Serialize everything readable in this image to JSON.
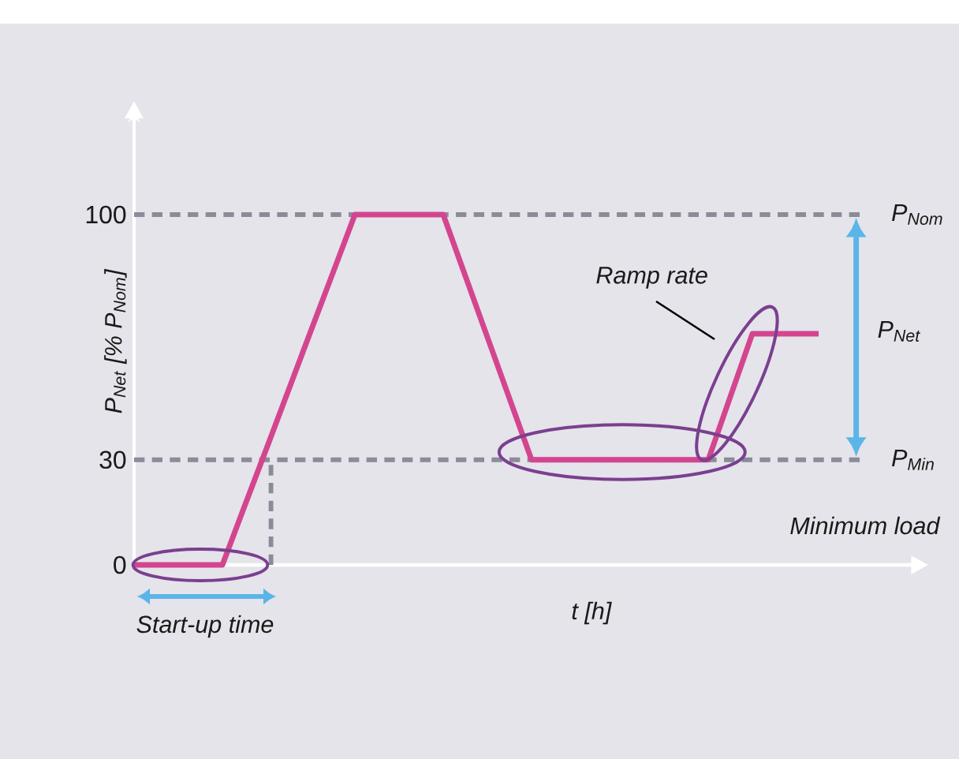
{
  "chart_data": {
    "type": "line",
    "xlabel": "t [h]",
    "ylabel": "P$_{Net}$ [% P$_{Nom}$]",
    "ylim": [
      0,
      127.5
    ],
    "yticks": [
      0,
      30,
      100
    ],
    "tick_labels": "y",
    "categories": [
      null,
      null,
      null,
      null,
      null,
      null,
      null,
      null,
      null,
      null,
      null,
      null,
      null,
      null,
      null,
      null,
      null,
      null,
      null,
      null,
      null,
      null,
      null,
      null,
      null,
      null,
      null,
      null,
      null,
      null,
      null,
      null
    ],
    "series": [
      {
        "color": "#d4458f",
        "values": [
          0,
          0,
          0,
          0,
          0,
          16.7,
          33.3,
          50,
          66.7,
          83.3,
          100,
          100,
          100,
          100,
          100,
          82.5,
          65,
          47.5,
          30,
          30,
          30,
          30,
          30,
          30,
          30,
          30,
          30,
          48,
          66,
          66,
          66,
          66
        ]
      }
    ],
    "ref_lines": [
      {
        "axis": "y",
        "value": 100,
        "label": "P$_{Nom}$",
        "color": "#8a8c99",
        "line_style": "dashed"
      },
      {
        "axis": "y",
        "value": 30,
        "label": "P$_{Min}$",
        "color": "#8a8c99",
        "line_style": "dashed"
      }
    ],
    "annotations": [
      "Start-up time",
      "Ramp rate",
      "Minimum load",
      "P$_{Net}$"
    ]
  }
}
